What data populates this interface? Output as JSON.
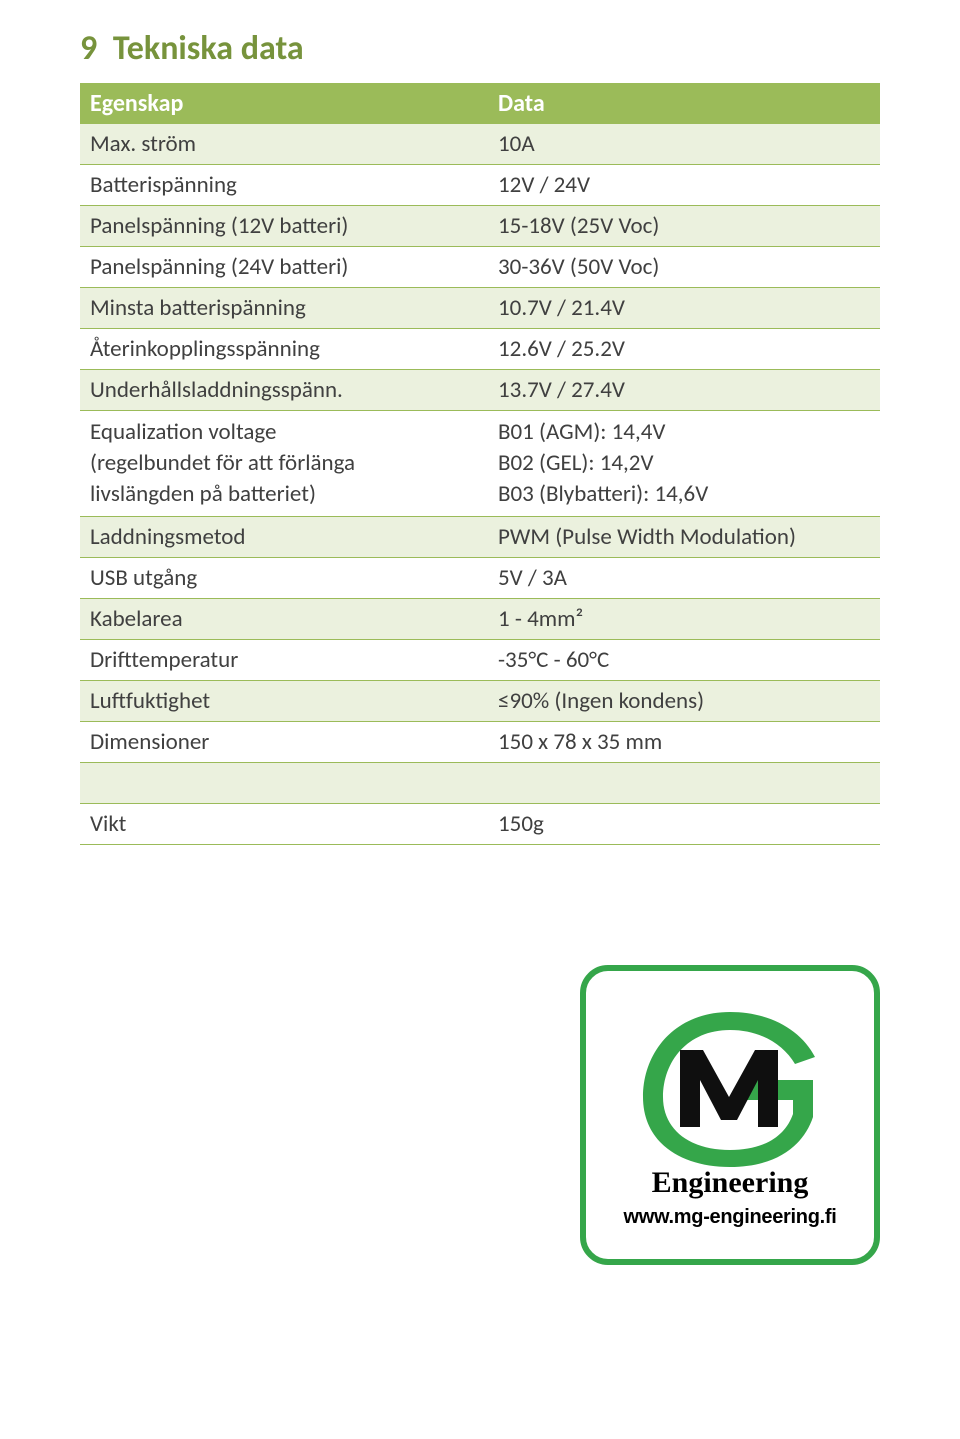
{
  "section": {
    "number": "9",
    "title": "Tekniska data"
  },
  "colors": {
    "title": "#77933c",
    "header_bg": "#9bbb59",
    "row_even": "#ebf1de",
    "row_odd_border": "#9bbb59",
    "text": "#404040",
    "logo_green": "#35a64a",
    "logo_dark": "#0f0f0f"
  },
  "table": {
    "headers": [
      "Egenskap",
      "Data"
    ],
    "rows": [
      {
        "prop": "Max. ström",
        "val": "10A"
      },
      {
        "prop": "Batterispänning",
        "val": "12V / 24V"
      },
      {
        "prop": "Panelspänning (12V batteri)",
        "val": "15-18V (25V Voc)"
      },
      {
        "prop": "Panelspänning (24V batteri)",
        "val": "30-36V (50V Voc)"
      },
      {
        "prop": "Minsta batterispänning",
        "val": "10.7V / 21.4V"
      },
      {
        "prop": "Återinkopplingsspänning",
        "val": "12.6V / 25.2V"
      },
      {
        "prop": "Underhållsladdningsspänn.",
        "val": "13.7V / 27.4V"
      },
      {
        "prop": "Equalization voltage\n(regelbundet för att förlänga\nlivslängden på batteriet)",
        "val": "B01 (AGM): 14,4V\nB02 (GEL): 14,2V\nB03 (Blybatteri): 14,6V"
      },
      {
        "prop": "Laddningsmetod",
        "val": "PWM (Pulse Width Modulation)"
      },
      {
        "prop": "USB utgång",
        "val": "5V / 3A"
      },
      {
        "prop": "Kabelarea",
        "val": "1 - 4mm²"
      },
      {
        "prop": "Drifttemperatur",
        "val": "-35°C - 60°C"
      },
      {
        "prop": "Luftfuktighet",
        "val": "≤90% (Ingen kondens)"
      },
      {
        "prop": "Dimensioner",
        "val": "150 x 78 x 35 mm"
      },
      {
        "prop": "",
        "val": ""
      },
      {
        "prop": "Vikt",
        "val": "150g"
      }
    ]
  },
  "logo": {
    "engineering_text": "Engineering",
    "url_text": "www.mg-engineering.fi"
  }
}
